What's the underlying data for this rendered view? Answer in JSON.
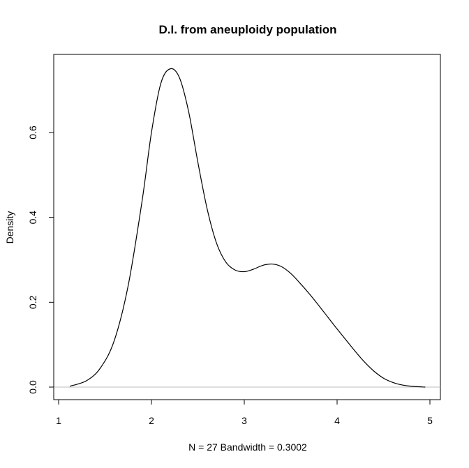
{
  "chart_data": {
    "type": "line",
    "title": "D.I. from aneuploidy population",
    "xlabel": "N = 27   Bandwidth = 0.3002",
    "ylabel": "Density",
    "xlim": [
      1,
      5
    ],
    "ylim": [
      0,
      0.75
    ],
    "x_ticks": [
      "1",
      "2",
      "3",
      "4",
      "5"
    ],
    "y_ticks": [
      "0.0",
      "0.2",
      "0.4",
      "0.6"
    ],
    "x_tick_values": [
      1,
      2,
      3,
      4,
      5
    ],
    "y_tick_values": [
      0,
      0.2,
      0.4,
      0.6
    ],
    "grid": false,
    "zero_line": true,
    "colors": {
      "line": "#000000",
      "zero_line": "#bebebe",
      "frame": "#000000"
    },
    "series": [
      {
        "x": [
          1.12,
          1.3,
          1.45,
          1.6,
          1.75,
          1.9,
          2.0,
          2.1,
          2.2,
          2.3,
          2.4,
          2.5,
          2.6,
          2.7,
          2.8,
          2.9,
          3.0,
          3.1,
          3.2,
          3.3,
          3.4,
          3.5,
          3.6,
          3.7,
          3.8,
          3.9,
          4.0,
          4.1,
          4.2,
          4.3,
          4.4,
          4.5,
          4.6,
          4.7,
          4.8,
          4.95
        ],
        "y": [
          0.002,
          0.015,
          0.045,
          0.11,
          0.24,
          0.44,
          0.6,
          0.715,
          0.75,
          0.73,
          0.65,
          0.53,
          0.42,
          0.34,
          0.295,
          0.276,
          0.272,
          0.278,
          0.287,
          0.29,
          0.284,
          0.268,
          0.245,
          0.22,
          0.193,
          0.165,
          0.137,
          0.11,
          0.083,
          0.058,
          0.037,
          0.021,
          0.011,
          0.005,
          0.002,
          0.0
        ]
      }
    ]
  }
}
